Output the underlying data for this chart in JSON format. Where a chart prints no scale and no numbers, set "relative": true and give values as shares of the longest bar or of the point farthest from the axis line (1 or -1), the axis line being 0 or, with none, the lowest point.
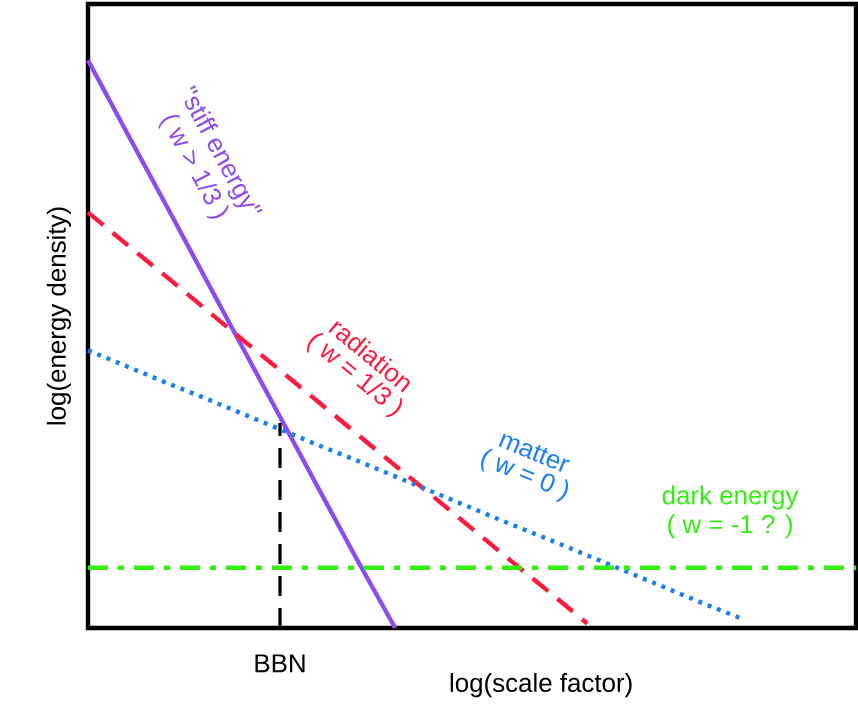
{
  "chart_data": {
    "type": "line",
    "relative": true,
    "xlabel": "log(scale factor)",
    "ylabel": "log(energy density)",
    "marker": "none",
    "categories": [
      null,
      null,
      null,
      null,
      null,
      null,
      null,
      null,
      null,
      null,
      null,
      null,
      null,
      null,
      null,
      null,
      null,
      null,
      null,
      null,
      null
    ],
    "series": [
      {
        "name": "\"stiff energy\"",
        "color": "#8c4cf0",
        "line_style": "solid",
        "values": [
          1.0,
          0.874,
          0.749,
          0.623,
          0.497,
          0.372,
          0.246,
          0.121,
          0,
          null,
          null,
          null,
          null,
          null,
          null,
          null,
          null,
          null,
          null,
          null,
          null
        ]
      },
      {
        "name": "radiation",
        "color": "#ff1a3c",
        "line_style": "dashed",
        "values": [
          0.732,
          0.676,
          0.621,
          0.565,
          0.509,
          0.454,
          0.398,
          0.342,
          0.286,
          0.231,
          0.175,
          0.119,
          0.064,
          0.008,
          null,
          null,
          null,
          null,
          null,
          null,
          null
        ]
      },
      {
        "name": "matter",
        "color": "#1a7ff0",
        "line_style": "dotted",
        "values": [
          0.489,
          0.461,
          0.433,
          0.406,
          0.378,
          0.35,
          0.322,
          0.295,
          0.267,
          0.239,
          0.211,
          0.183,
          0.156,
          0.128,
          0.1,
          0.072,
          0.044,
          0.017,
          null,
          null,
          null
        ]
      },
      {
        "name": "dark energy",
        "color": "#33ee11",
        "line_style": "dashdot",
        "values": [
          0.106,
          0.106,
          0.106,
          0.106,
          0.106,
          0.106,
          0.106,
          0.106,
          0.106,
          0.106,
          0.106,
          0.106,
          0.106,
          0.106,
          0.106,
          0.106,
          0.106,
          0.106,
          0.106,
          0.106,
          0.106
        ]
      }
    ],
    "annotations": [
      "( w > 1/3 )",
      "( w = 1/3 )",
      "( w = 0 )",
      "( w = -1 ? )",
      "BBN"
    ]
  }
}
